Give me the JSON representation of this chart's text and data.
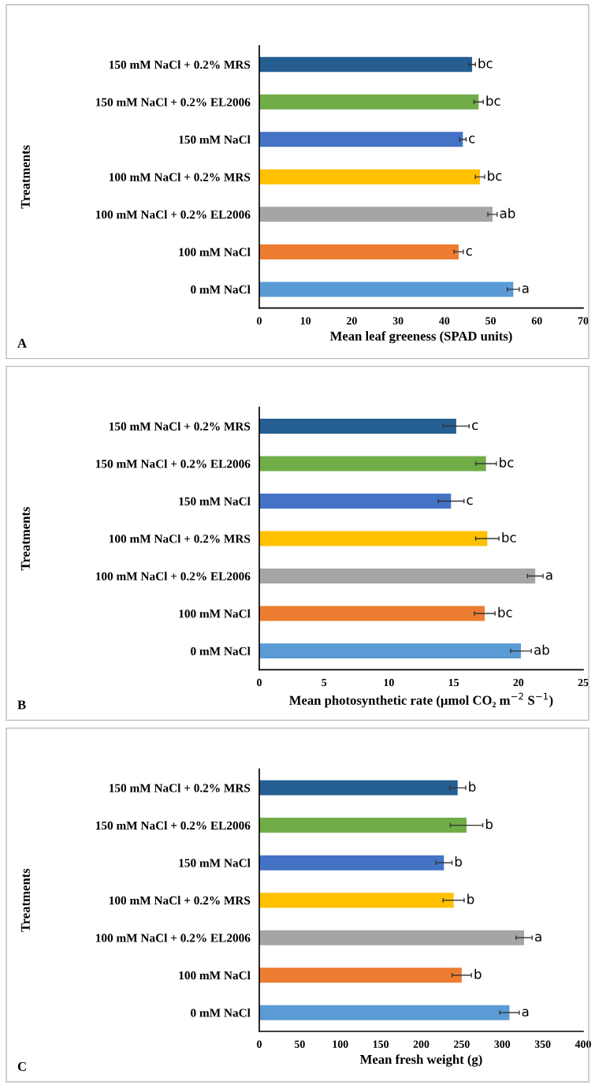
{
  "chart_data": [
    {
      "type": "bar",
      "orientation": "horizontal",
      "categories": [
        "150 mM NaCl + 0.2% MRS",
        "150 mM NaCl + 0.2% EL2006",
        "150 mM NaCl",
        "100 mM NaCl + 0.2% MRS",
        "100 mM NaCl + 0.2% EL2006",
        "100 mM NaCl",
        "0 mM NaCl"
      ],
      "values": [
        46.0,
        47.4,
        44.0,
        47.7,
        50.4,
        43.1,
        54.9
      ],
      "errors": [
        0.7,
        1.0,
        0.7,
        1.0,
        1.0,
        1.0,
        1.3
      ],
      "colors": [
        "#255e91",
        "#70ad47",
        "#4472c4",
        "#ffc000",
        "#a5a5a5",
        "#ed7d31",
        "#5b9bd5"
      ],
      "value_labels": [
        "bc",
        "bc",
        "c",
        "bc",
        "ab",
        "c",
        "a"
      ],
      "xlim": [
        0,
        70
      ],
      "xticks": [
        0,
        10,
        20,
        30,
        40,
        50,
        60,
        70
      ],
      "xlabel": "Mean leaf greeness (SPAD units)",
      "ylabel": "Treatments",
      "annotations": [
        "A"
      ],
      "grid": false,
      "legend": false
    },
    {
      "type": "bar",
      "orientation": "horizontal",
      "categories": [
        "150 mM NaCl + 0.2% MRS",
        "150 mM NaCl + 0.2% EL2006",
        "150 mM NaCl",
        "100 mM NaCl + 0.2% MRS",
        "100 mM NaCl + 0.2% EL2006",
        "100 mM NaCl",
        "0 mM NaCl"
      ],
      "values": [
        15.2,
        17.5,
        14.8,
        17.6,
        21.3,
        17.4,
        20.2
      ],
      "errors": [
        1.0,
        0.8,
        1.0,
        0.9,
        0.6,
        0.8,
        0.8
      ],
      "colors": [
        "#255e91",
        "#70ad47",
        "#4472c4",
        "#ffc000",
        "#a5a5a5",
        "#ed7d31",
        "#5b9bd5"
      ],
      "value_labels": [
        "c",
        "bc",
        "c",
        "bc",
        "a",
        "bc",
        "ab"
      ],
      "xlim": [
        0,
        25
      ],
      "xticks": [
        0,
        5,
        10,
        15,
        20,
        25
      ],
      "xlabel": "Mean photosynthetic rate (µmol CO₂ m$^{−2}$ S$^{−1}$)",
      "ylabel": "Treatments",
      "annotations": [
        "B"
      ],
      "grid": false,
      "legend": false
    },
    {
      "type": "bar",
      "orientation": "horizontal",
      "categories": [
        "150 mM NaCl + 0.2% MRS",
        "150 mM NaCl + 0.2% EL2006",
        "150 mM NaCl",
        "100 mM NaCl + 0.2% MRS",
        "100 mM NaCl + 0.2% EL2006",
        "100 mM NaCl",
        "0 mM NaCl"
      ],
      "values": [
        245,
        256,
        228,
        240,
        327,
        250,
        309
      ],
      "errors": [
        10,
        20,
        10,
        13,
        10,
        12,
        12
      ],
      "colors": [
        "#255e91",
        "#70ad47",
        "#4472c4",
        "#ffc000",
        "#a5a5a5",
        "#ed7d31",
        "#5b9bd5"
      ],
      "value_labels": [
        "b",
        "b",
        "b",
        "b",
        "a",
        "b",
        "a"
      ],
      "xlim": [
        0,
        400
      ],
      "xticks": [
        0,
        50,
        100,
        150,
        200,
        250,
        300,
        350,
        400
      ],
      "xlabel": "Mean fresh weight (g)",
      "ylabel": "Treatments",
      "annotations": [
        "C"
      ],
      "grid": false,
      "legend": false
    }
  ]
}
